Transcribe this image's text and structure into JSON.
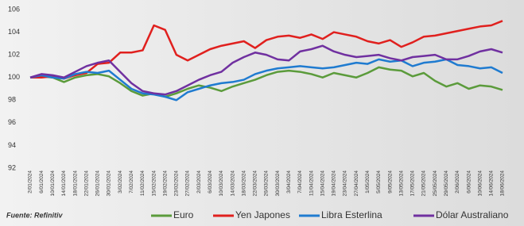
{
  "chart_data": {
    "type": "line",
    "source": "Fuente: Refinitiv",
    "categories": [
      "2/01/2024",
      "6/01/2024",
      "10/01/2024",
      "14/01/2024",
      "18/01/2024",
      "22/01/2024",
      "26/01/2024",
      "30/01/2024",
      "3/02/2024",
      "7/02/2024",
      "11/02/2024",
      "15/02/2024",
      "19/02/2024",
      "23/02/2024",
      "27/02/2024",
      "2/03/2024",
      "6/03/2024",
      "10/03/2024",
      "14/03/2024",
      "18/03/2024",
      "22/03/2024",
      "26/03/2024",
      "30/03/2024",
      "3/04/2024",
      "7/04/2024",
      "11/04/2024",
      "15/04/2024",
      "19/04/2024",
      "23/04/2024",
      "27/04/2024",
      "1/05/2024",
      "5/05/2024",
      "9/05/2024",
      "13/05/2024",
      "17/05/2024",
      "21/05/2024",
      "25/05/2024",
      "29/05/2024",
      "2/06/2024",
      "6/06/2024",
      "10/06/2024",
      "14/06/2024",
      "18/06/2024"
    ],
    "series": [
      {
        "name": "Euro",
        "color": "#5b9b3b",
        "values": [
          100,
          100.1,
          100,
          99.6,
          100,
          100.2,
          100.3,
          100.1,
          99.5,
          98.8,
          98.4,
          98.6,
          98.3,
          98.6,
          99,
          99.3,
          99.1,
          98.8,
          99.2,
          99.5,
          99.8,
          100.2,
          100.5,
          100.6,
          100.5,
          100.3,
          100.0,
          100.4,
          100.2,
          100.0,
          100.4,
          100.9,
          100.7,
          100.6,
          100.1,
          100.4,
          99.7,
          99.2,
          99.5,
          99.0,
          99.3,
          99.2,
          98.9
        ]
      },
      {
        "name": "Yen Japones",
        "color": "#e0201e",
        "values": [
          100,
          100,
          100.1,
          99.9,
          100.2,
          100.4,
          101.2,
          101.3,
          102.2,
          102.2,
          102.4,
          104.6,
          104.2,
          102,
          101.5,
          102,
          102.5,
          102.8,
          103.0,
          103.2,
          102.6,
          103.3,
          103.6,
          103.7,
          103.5,
          103.8,
          103.4,
          104.0,
          103.8,
          103.6,
          103.2,
          103.0,
          103.3,
          102.7,
          103.1,
          103.6,
          103.7,
          103.9,
          104.1,
          104.3,
          104.5,
          104.6,
          105.0
        ]
      },
      {
        "name": "Libra Esterlina",
        "color": "#1f7bd0",
        "values": [
          100,
          100.2,
          100,
          99.9,
          100.3,
          100.5,
          100.4,
          100.6,
          99.8,
          99,
          98.6,
          98.5,
          98.3,
          98.0,
          98.7,
          99,
          99.3,
          99.5,
          99.6,
          99.8,
          100.3,
          100.6,
          100.8,
          100.9,
          101,
          100.9,
          100.8,
          100.9,
          101.1,
          101.3,
          101.2,
          101.6,
          101.4,
          101.5,
          101.0,
          101.3,
          101.4,
          101.6,
          101.1,
          101.0,
          100.8,
          100.9,
          100.4
        ]
      },
      {
        "name": "Dólar Australiano",
        "color": "#7030a0",
        "values": [
          100,
          100.3,
          100.2,
          100,
          100.5,
          101,
          101.3,
          101.5,
          100.5,
          99.5,
          98.8,
          98.6,
          98.5,
          98.8,
          99.3,
          99.8,
          100.2,
          100.5,
          101.3,
          101.8,
          102.2,
          102,
          101.6,
          101.5,
          102.3,
          102.5,
          102.8,
          102.3,
          102,
          101.8,
          101.9,
          102,
          101.7,
          101.5,
          101.8,
          101.9,
          102,
          101.6,
          101.6,
          101.9,
          102.3,
          102.5,
          102.2
        ]
      }
    ],
    "ylim": [
      92,
      106
    ],
    "yticks": [
      92,
      94,
      96,
      98,
      100,
      102,
      104,
      106
    ]
  }
}
